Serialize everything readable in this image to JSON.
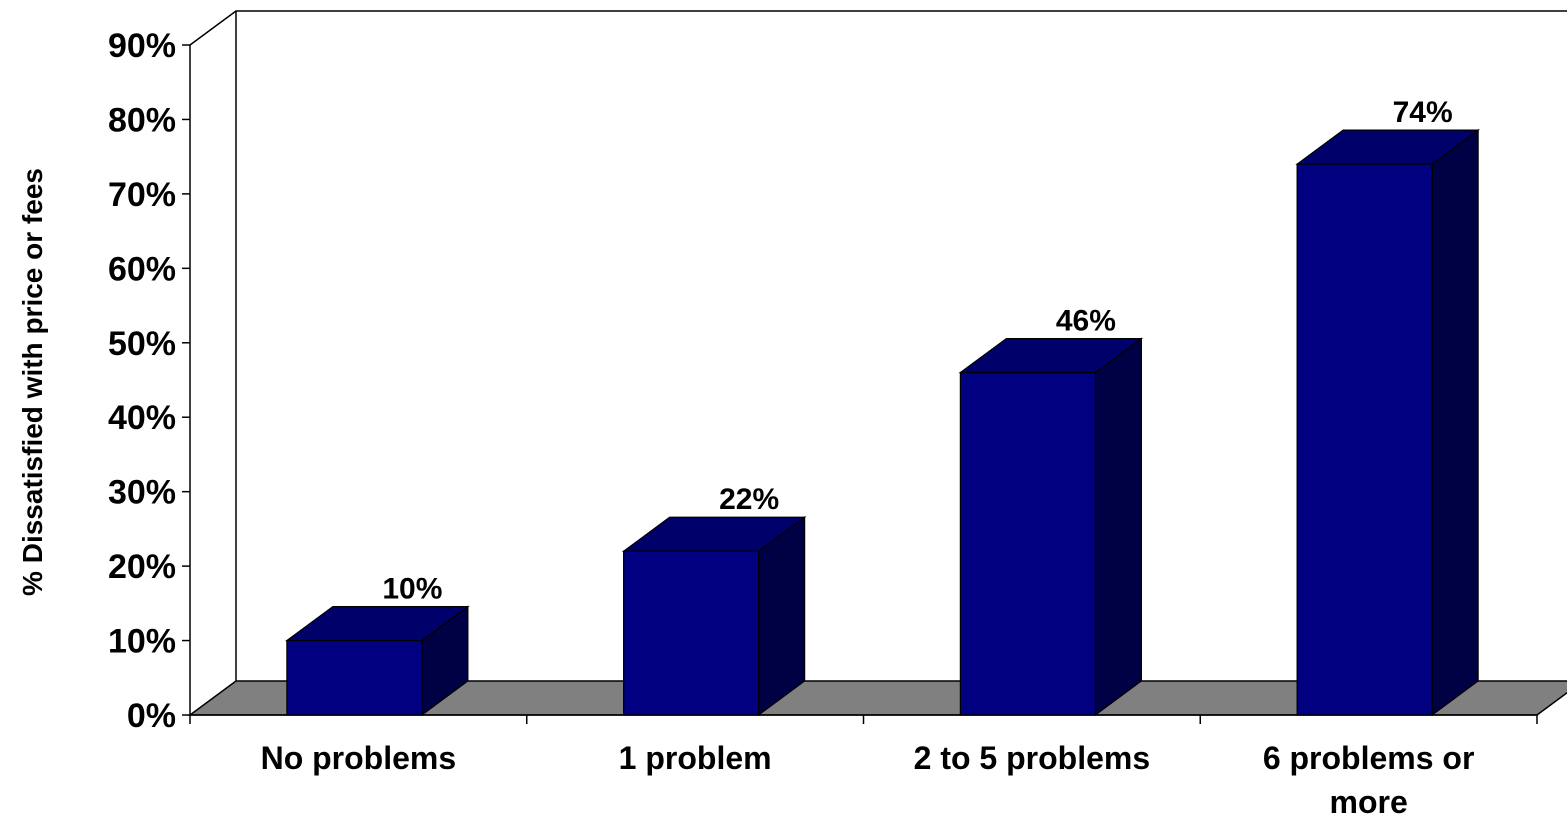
{
  "chart_data": {
    "type": "bar",
    "style": "3d",
    "categories": [
      "No problems",
      "1 problem",
      "2 to 5 problems",
      "6 problems or more"
    ],
    "category_lines": [
      [
        "No problems"
      ],
      [
        "1 problem"
      ],
      [
        "2 to 5 problems"
      ],
      [
        "6 problems or",
        "more"
      ]
    ],
    "values": [
      10,
      22,
      46,
      74
    ],
    "data_labels": [
      "10%",
      "22%",
      "46%",
      "74%"
    ],
    "title": "",
    "xlabel": "",
    "ylabel": "% Dissatisfied with price or fees",
    "ylim": [
      0,
      90
    ],
    "yticks": [
      0,
      10,
      20,
      30,
      40,
      50,
      60,
      70,
      80,
      90
    ],
    "ytick_labels": [
      "0%",
      "10%",
      "20%",
      "30%",
      "40%",
      "50%",
      "60%",
      "70%",
      "80%",
      "90%"
    ],
    "grid": false,
    "colors": {
      "bar_front": "#000080",
      "bar_top": "#00006b",
      "bar_side": "#000045",
      "floor": "#808080"
    }
  }
}
